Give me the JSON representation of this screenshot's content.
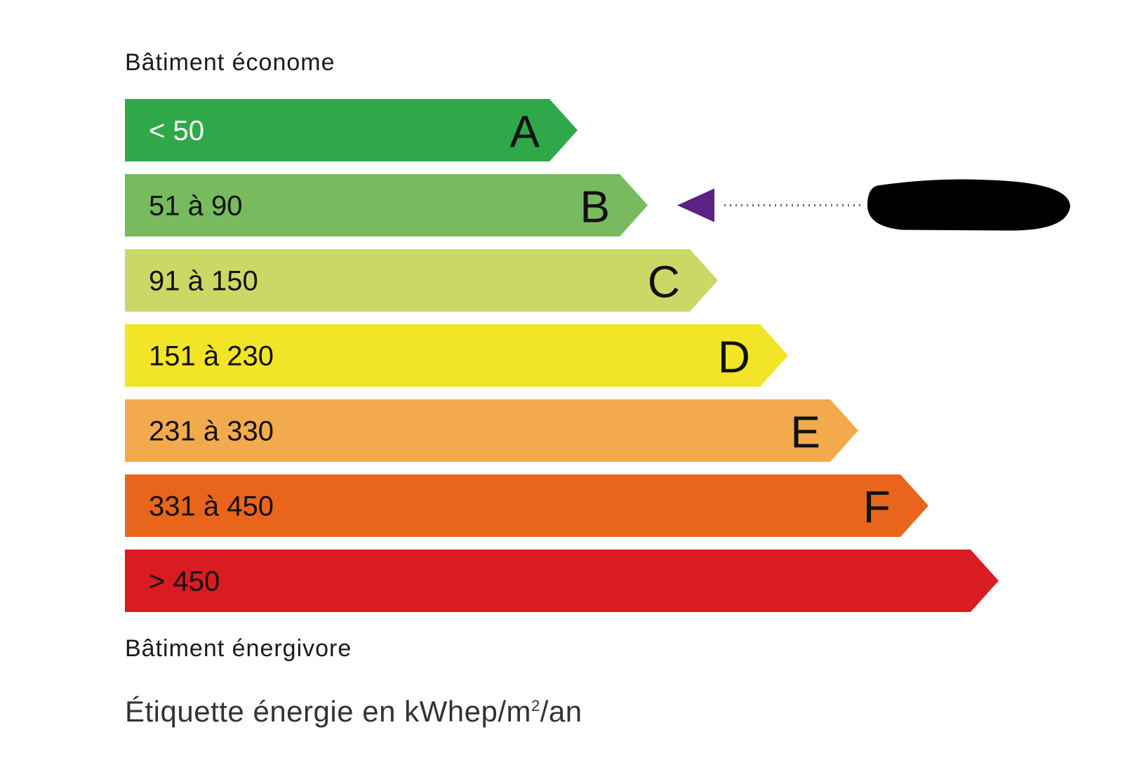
{
  "chart_data": {
    "type": "bar",
    "top_label": "Bâtiment économe",
    "bottom_label": "Bâtiment énergivore",
    "unit_label_prefix": "Étiquette énergie en kWhep/m",
    "unit_label_sup": "2",
    "unit_label_suffix": "/an",
    "classes": [
      {
        "letter": "A",
        "range": "< 50",
        "color": "#2fa84a",
        "text_color": "#ffffff"
      },
      {
        "letter": "B",
        "range": "51 à 90",
        "color": "#78bb5e",
        "text_color": "#111111"
      },
      {
        "letter": "C",
        "range": "91 à 150",
        "color": "#cbd866",
        "text_color": "#111111"
      },
      {
        "letter": "D",
        "range": "151 à 230",
        "color": "#f2e426",
        "text_color": "#111111"
      },
      {
        "letter": "E",
        "range": "231 à 330",
        "color": "#f3aa4d",
        "text_color": "#111111"
      },
      {
        "letter": "F",
        "range": "331 à 450",
        "color": "#e9651c",
        "text_color": "#111111"
      },
      {
        "letter": "",
        "range": "> 450",
        "color": "#d91c21",
        "text_color": "#111111"
      }
    ],
    "indicator": {
      "class": "B",
      "color": "#5a2282",
      "value_redacted": true
    }
  }
}
